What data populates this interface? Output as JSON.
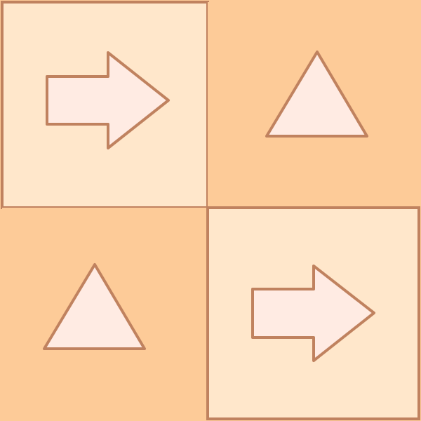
{
  "colors": {
    "background": "#FDCB98",
    "light_tile": "#FFE7CB",
    "shape_fill": "#FFEBE3",
    "stroke": "#C0825F"
  },
  "tiles": [
    {
      "name": "tile-top-left",
      "style": "light",
      "bordered": true,
      "icon": "arrow-right-icon"
    },
    {
      "name": "tile-top-right",
      "style": "plain",
      "bordered": false,
      "icon": "triangle-icon"
    },
    {
      "name": "tile-bottom-left",
      "style": "plain",
      "bordered": false,
      "icon": "triangle-icon"
    },
    {
      "name": "tile-bottom-right",
      "style": "light",
      "bordered": true,
      "icon": "arrow-right-icon"
    }
  ]
}
